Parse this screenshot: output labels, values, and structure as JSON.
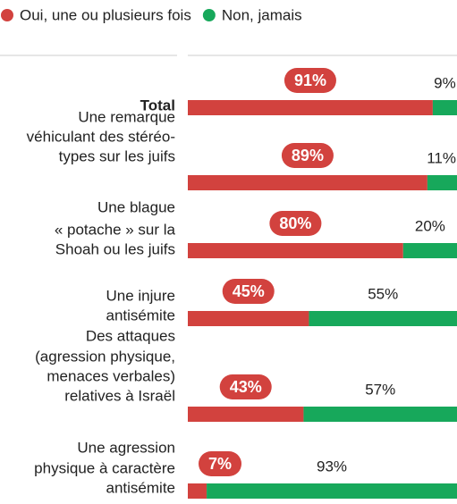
{
  "chart_data": {
    "type": "stacked-bar",
    "categories": [
      [
        "Total"
      ],
      [
        "Une remarque",
        "véhiculant des stéréo-",
        "types sur les juifs"
      ],
      [
        "Une blague",
        "« potache » sur la",
        "Shoah ou les juifs"
      ],
      [
        "Une injure",
        "antisémite"
      ],
      [
        "Des attaques",
        "(agression physique,",
        "menaces verbales)",
        "relatives à Israël"
      ],
      [
        "Une agression",
        "physique à caractère",
        "antisémite"
      ]
    ],
    "xlim": [
      0,
      100
    ],
    "series": [
      {
        "name": "Oui, une ou plusieurs fois",
        "color": "#d2423e",
        "values": [
          91,
          89,
          80,
          45,
          43,
          7
        ],
        "value_labels": [
          "91%",
          "89%",
          "80%",
          "45%",
          "43%",
          "7%"
        ]
      },
      {
        "name": "Non, jamais",
        "color": "#17a85b",
        "values": [
          9,
          11,
          20,
          55,
          57,
          93
        ],
        "value_labels": [
          "9%",
          "11%",
          "20%",
          "55%",
          "57%",
          "93%"
        ]
      }
    ]
  }
}
